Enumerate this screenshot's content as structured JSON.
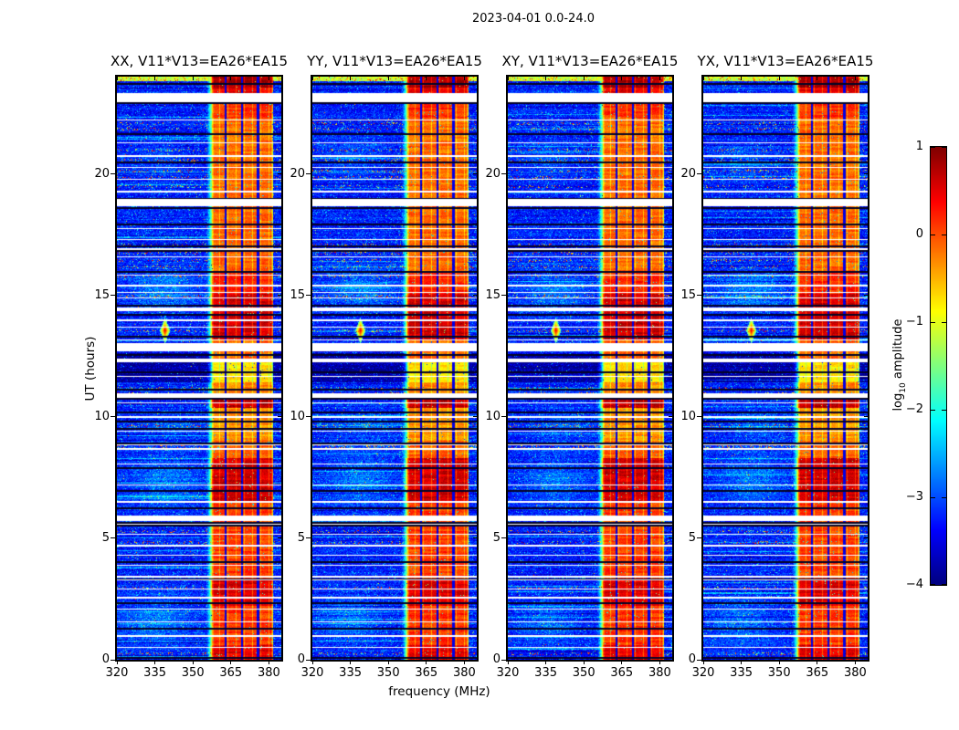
{
  "title": "2023-04-01 0.0-24.0",
  "panels": [
    {
      "title": "XX, V11*V13=EA26*EA15"
    },
    {
      "title": "YY, V11*V13=EA26*EA15"
    },
    {
      "title": "XY, V11*V13=EA26*EA15"
    },
    {
      "title": "YX, V11*V13=EA26*EA15"
    }
  ],
  "axes": {
    "ylabel": "UT (hours)",
    "xlabel": "frequency (MHz)",
    "xlim": [
      320,
      384.9
    ],
    "ylim": [
      0,
      24
    ],
    "xticks": {
      "values": [
        320,
        335,
        350,
        365,
        380
      ],
      "labels": [
        "320",
        "335",
        "350",
        "365",
        "380"
      ]
    },
    "yticks": {
      "values": [
        0,
        5,
        10,
        15,
        20
      ],
      "labels": [
        "0",
        "5",
        "10",
        "15",
        "20"
      ]
    }
  },
  "colorbar": {
    "label_prefix": "log",
    "label_sub": "10",
    "label_suffix": " amplitude",
    "vmin": -4,
    "vmax": 1,
    "colormap": "jet",
    "ticks": {
      "values": [
        1,
        0,
        -1,
        -2,
        -3,
        -4
      ],
      "labels": [
        "1",
        "0",
        "−1",
        "−2",
        "−3",
        "−4"
      ]
    }
  },
  "chart_data": {
    "type": "heatmap",
    "title": "2023-04-01 0.0-24.0",
    "xlabel": "frequency (MHz)",
    "ylabel": "UT (hours)",
    "xlim": [
      320,
      384.9
    ],
    "ylim": [
      0,
      24
    ],
    "value_scale": "log10 amplitude",
    "value_range": [
      -4,
      1
    ],
    "colormap": "jet",
    "panel_titles": [
      "XX, V11*V13=EA26*EA15",
      "YY, V11*V13=EA26*EA15",
      "XY, V11*V13=EA26*EA15",
      "YX, V11*V13=EA26*EA15"
    ],
    "features": {
      "noise_floor": -3.25,
      "band": {
        "f0": 357.2,
        "f1": 381.65,
        "separators": [
          363.0,
          369.3,
          375.7
        ],
        "sub_step": 1.62,
        "shoulder_start": 354.8
      },
      "band_profile": [
        [
          23.55,
          24.01,
          0.85
        ],
        [
          23.28,
          23.55,
          0.45
        ],
        [
          22.3,
          23.0,
          0.15
        ],
        [
          19.0,
          22.3,
          -0.15
        ],
        [
          16.0,
          18.72,
          -0.12
        ],
        [
          15.05,
          16.0,
          0.2
        ],
        [
          13.2,
          15.05,
          0.62
        ],
        [
          12.4,
          13.2,
          -0.1
        ],
        [
          11.4,
          12.4,
          -0.75
        ],
        [
          10.95,
          11.4,
          -0.3
        ],
        [
          10.35,
          10.95,
          0.7
        ],
        [
          9.0,
          10.35,
          -0.35
        ],
        [
          8.3,
          9.0,
          -0.1
        ],
        [
          6.5,
          8.3,
          0.6
        ],
        [
          5.95,
          6.5,
          0.1
        ],
        [
          3.3,
          5.95,
          0.08
        ],
        [
          2.2,
          3.3,
          0.55
        ],
        [
          0.6,
          2.2,
          0.12
        ],
        [
          -0.01,
          0.6,
          0.5
        ]
      ],
      "white_gaps": [
        [
          23.0,
          23.28
        ],
        [
          18.72,
          18.98
        ],
        [
          14.38,
          14.5
        ],
        [
          12.72,
          12.95
        ],
        [
          12.27,
          12.4
        ],
        [
          10.82,
          10.95
        ],
        [
          5.75,
          5.95
        ]
      ],
      "white_lines": [
        23.32,
        22.25,
        21.3,
        20.78,
        20.28,
        19.78,
        19.32,
        17.78,
        17.3,
        16.95,
        16.6,
        15.85,
        15.45,
        15.12,
        14.9,
        14.0,
        13.72,
        13.2,
        13.05,
        11.68,
        10.6,
        10.02,
        9.42,
        8.87,
        8.7,
        8.06,
        7.22,
        6.55,
        5.6,
        5.18,
        4.72,
        4.32,
        3.92,
        3.45,
        3.3,
        2.92,
        2.6,
        2.12,
        1.58,
        1.02,
        0.52
      ],
      "black_lines": [
        23.72,
        22.95,
        21.68,
        20.5,
        19.02,
        18.62,
        17.95,
        17.05,
        16.88,
        16.0,
        14.62,
        14.25,
        13.35,
        12.6,
        11.85,
        11.15,
        10.78,
        10.22,
        9.85,
        9.55,
        8.95,
        7.92,
        6.98,
        6.28,
        5.68,
        5.55,
        4.05,
        3.35,
        2.35,
        1.3,
        0.12
      ],
      "speckle_rows": [
        23.9,
        22.1,
        21.85,
        21.0,
        20.6,
        20.15,
        19.85,
        19.5,
        17.1,
        16.75,
        16.45,
        16.2,
        15.8,
        15.0,
        13.55,
        11.2,
        10.95,
        9.65,
        8.78,
        5.3,
        4.85,
        2.95,
        0.28
      ],
      "haze": [
        {
          "f": [
            339,
            14
          ],
          "t": [
            15.2,
            0.9
          ],
          "amp": 0.5
        },
        {
          "f": [
            339,
            13
          ],
          "t": [
            7.4,
            1.1
          ],
          "amp": 0.45
        },
        {
          "f": [
            335,
            13
          ],
          "t": [
            1.6,
            1.0
          ],
          "amp": 0.42
        },
        {
          "f": [
            342,
            14
          ],
          "t": [
            9.7,
            0.6
          ],
          "amp": 0.35
        },
        {
          "f": [
            336,
            11
          ],
          "t": [
            20.6,
            0.8
          ],
          "amp": 0.3
        }
      ],
      "dark_band": [
        11.4,
        12.62
      ],
      "top_bright_row": [
        23.8,
        24
      ],
      "star": {
        "f": 339,
        "t": 13.55
      }
    }
  }
}
